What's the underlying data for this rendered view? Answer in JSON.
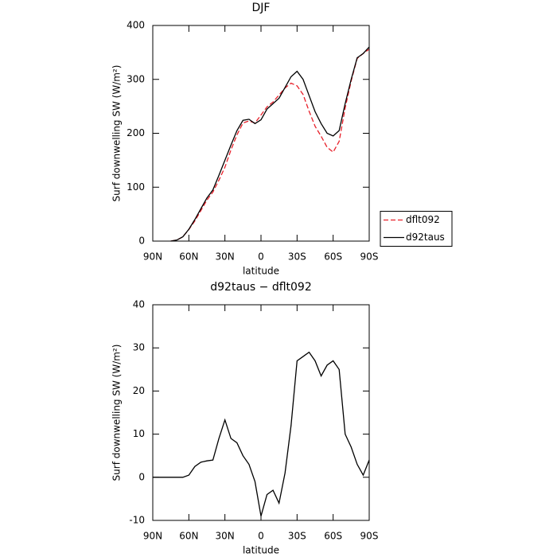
{
  "chart_data": [
    {
      "type": "line",
      "title": "DJF",
      "xlabel": "latitude",
      "ylabel": "Surf downwelling SW (W/m²)",
      "x": [
        90,
        85,
        80,
        75,
        70,
        65,
        60,
        55,
        50,
        45,
        40,
        35,
        30,
        25,
        20,
        15,
        10,
        5,
        0,
        -5,
        -10,
        -15,
        -20,
        -25,
        -30,
        -35,
        -40,
        -45,
        -50,
        -55,
        -60,
        -65,
        -70,
        -75,
        -80,
        -85,
        -90
      ],
      "series": [
        {
          "name": "dflt092",
          "color": "#e8202a",
          "line_style": "dashed",
          "values": [
            null,
            null,
            null,
            0,
            2,
            8,
            21.5,
            37.5,
            56.5,
            76,
            91,
            113,
            137,
            169,
            197,
            219,
            223,
            219,
            234,
            249,
            258,
            271,
            284,
            293,
            288,
            272,
            241,
            213,
            194.5,
            174,
            165,
            185,
            247,
            297,
            339,
            348,
            356
          ]
        },
        {
          "name": "d92taus",
          "color": "#000000",
          "line_style": "solid",
          "values": [
            null,
            null,
            null,
            0,
            2,
            8,
            22,
            40,
            60,
            80,
            95,
            122,
            150,
            178,
            205,
            224,
            226,
            218,
            225,
            245,
            255,
            265,
            285,
            305,
            315,
            300,
            270,
            240,
            218,
            200,
            195,
            205,
            255,
            300,
            340,
            348,
            360
          ]
        }
      ],
      "xlim": [
        90,
        -90
      ],
      "xticks": [
        {
          "value": 90,
          "label": "90N"
        },
        {
          "value": 60,
          "label": "60N"
        },
        {
          "value": 30,
          "label": "30N"
        },
        0,
        {
          "value": -30,
          "label": "30S"
        },
        {
          "value": -60,
          "label": "60S"
        },
        {
          "value": -90,
          "label": "90S"
        }
      ],
      "ylim": [
        0,
        400
      ],
      "yticks": [
        0,
        100,
        200,
        300,
        400
      ],
      "legend": "right"
    },
    {
      "type": "line",
      "title": "d92taus − dflt092",
      "xlabel": "latitude",
      "ylabel": "Surf downwelling SW (W/m²)",
      "x": [
        90,
        85,
        80,
        75,
        70,
        65,
        60,
        55,
        50,
        45,
        40,
        35,
        30,
        25,
        20,
        15,
        10,
        5,
        0,
        -5,
        -10,
        -15,
        -20,
        -25,
        -30,
        -35,
        -40,
        -45,
        -50,
        -55,
        -60,
        -65,
        -70,
        -75,
        -80,
        -85,
        -90
      ],
      "series": [
        {
          "color": "#000000",
          "line_style": "solid",
          "values": [
            0,
            0,
            0,
            0,
            0,
            0,
            0.5,
            2.5,
            3.5,
            3.8,
            4,
            9,
            13.3,
            9,
            8,
            5,
            3,
            -1,
            -9,
            -4,
            -3,
            -6,
            1,
            12,
            27,
            28,
            29,
            27,
            23.5,
            26,
            27,
            25,
            10,
            7,
            3,
            0.5,
            4
          ]
        }
      ],
      "xlim": [
        90,
        -90
      ],
      "xticks": [
        {
          "value": 90,
          "label": "90N"
        },
        {
          "value": 60,
          "label": "60N"
        },
        {
          "value": 30,
          "label": "30N"
        },
        0,
        {
          "value": -30,
          "label": "30S"
        },
        {
          "value": -60,
          "label": "60S"
        },
        {
          "value": -90,
          "label": "90S"
        }
      ],
      "ylim": [
        -10,
        40
      ],
      "yticks": [
        -10,
        0,
        10,
        20,
        30,
        40
      ]
    }
  ]
}
